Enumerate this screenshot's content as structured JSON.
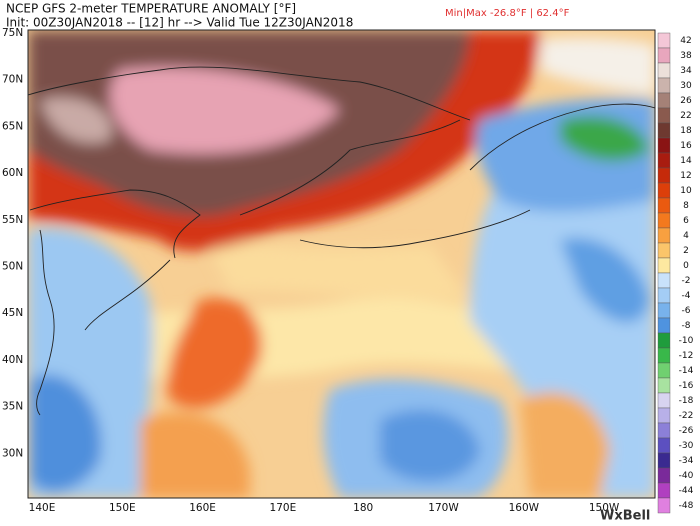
{
  "header": {
    "title": "NCEP GFS 2-meter TEMPERATURE ANOMALY [°F]",
    "init": "Init: 00Z30JAN2018 -- [12] hr --> Valid Tue 12Z30JAN2018",
    "min_max": "Min|Max -26.8°F | 62.4°F"
  },
  "map": {
    "lat_labels": [
      "75N",
      "70N",
      "65N",
      "60N",
      "55N",
      "50N",
      "45N",
      "40N",
      "35N",
      "30N"
    ],
    "lon_labels": [
      "140E",
      "150E",
      "160E",
      "170E",
      "180",
      "170W",
      "160W",
      "150W"
    ]
  },
  "colorbar": {
    "labels": [
      42,
      38,
      34,
      30,
      26,
      22,
      18,
      16,
      14,
      12,
      10,
      8,
      6,
      4,
      2,
      0,
      -2,
      -4,
      -6,
      -8,
      -10,
      -12,
      -14,
      -16,
      -18,
      -22,
      -26,
      -30,
      -34,
      -40,
      -44,
      -48
    ]
  },
  "logo": "WxBell"
}
